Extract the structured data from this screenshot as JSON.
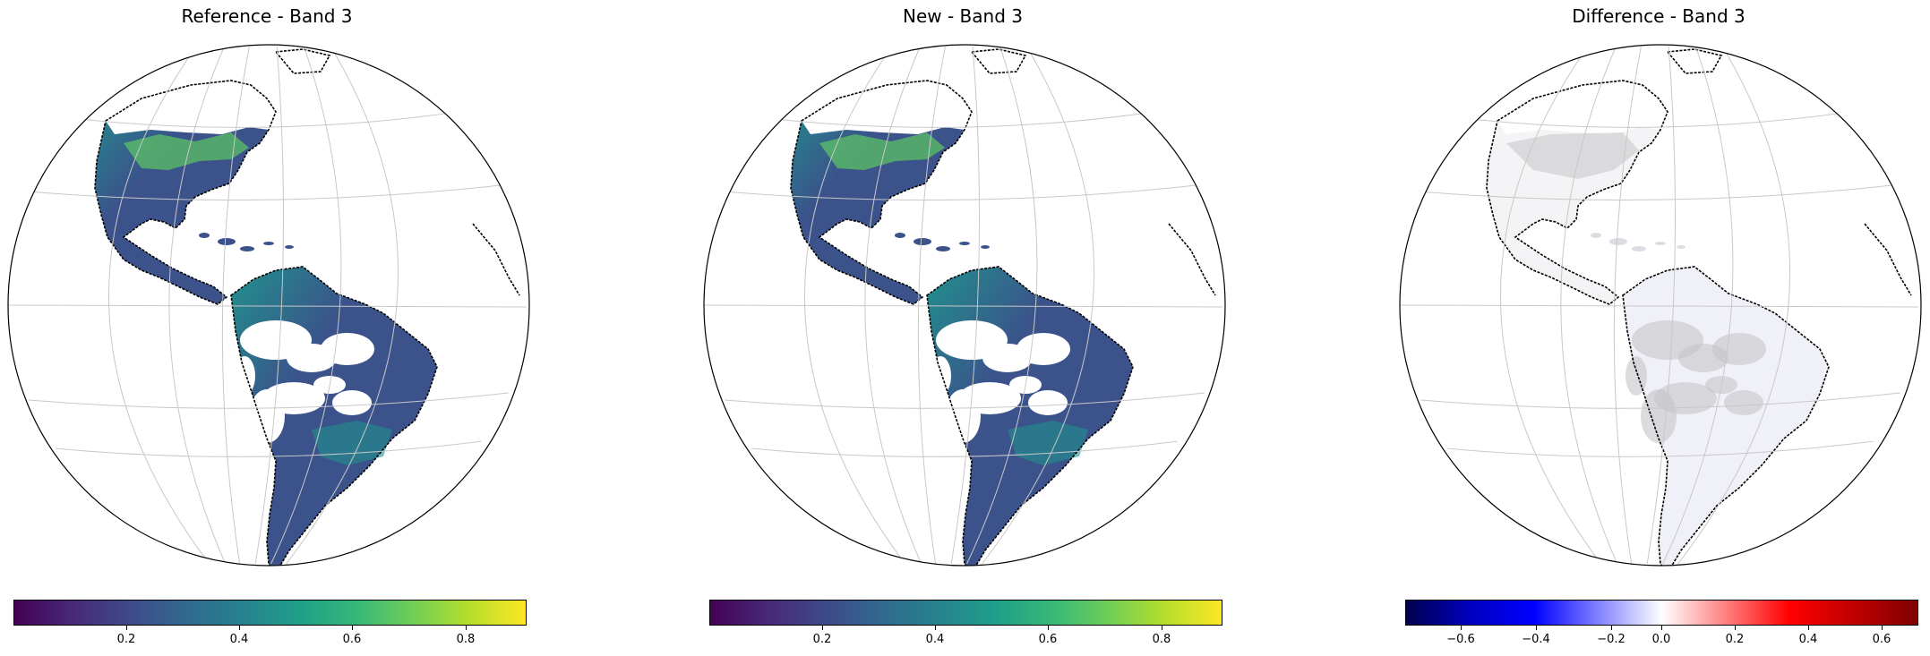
{
  "panels": [
    {
      "title": "Reference - Band 3",
      "colormap": "viridis",
      "colorbar_ticks": [
        "0.2",
        "0.4",
        "0.6",
        "0.8"
      ]
    },
    {
      "title": "New - Band 3",
      "colormap": "viridis",
      "colorbar_ticks": [
        "0.2",
        "0.4",
        "0.6",
        "0.8"
      ]
    },
    {
      "title": "Difference - Band 3",
      "colormap": "seismic",
      "colorbar_ticks": [
        "−0.6",
        "−0.4",
        "−0.2",
        "0.0",
        "0.2",
        "0.4",
        "0.6"
      ]
    }
  ],
  "colors": {
    "viridis_dark": "#440154",
    "viridis_mid": "#21918c",
    "viridis_light": "#5ec962",
    "viridis_yellow": "#fde725",
    "land_main": "#3b528b",
    "seismic_blue": "#0000ff",
    "seismic_red": "#ff0000",
    "gridline": "#c8c8c8",
    "diff_land": "#c4c4c8"
  }
}
